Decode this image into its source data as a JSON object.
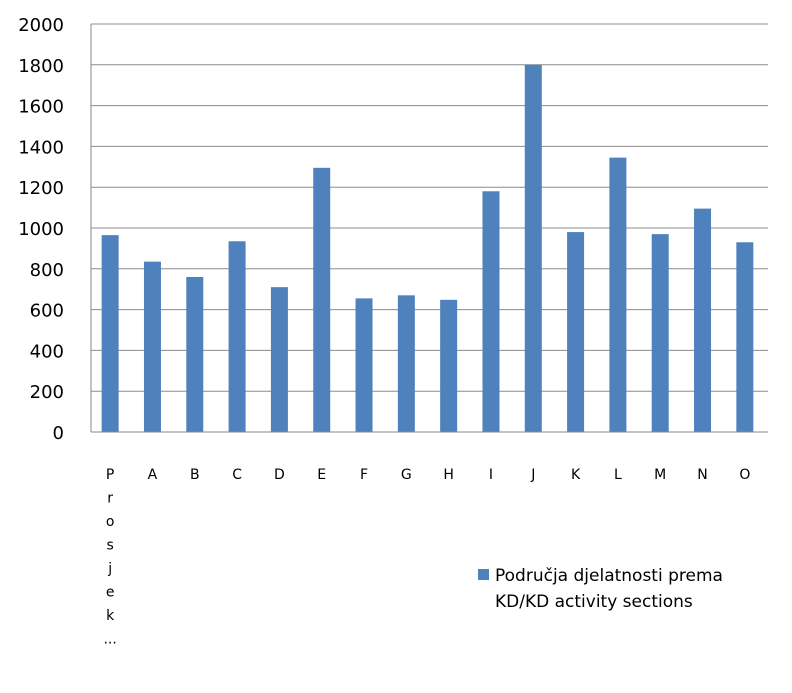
{
  "chart_data": {
    "type": "bar",
    "categories": [
      "Prosjek...",
      "A",
      "B",
      "C",
      "D",
      "E",
      "F",
      "G",
      "H",
      "I",
      "J",
      "K",
      "L",
      "M",
      "N",
      "O"
    ],
    "category_lines": [
      [
        "P",
        "r",
        "o",
        "s",
        "j",
        "e",
        "k",
        "..."
      ],
      [
        "A"
      ],
      [
        "B"
      ],
      [
        "C"
      ],
      [
        "D"
      ],
      [
        "E"
      ],
      [
        "F"
      ],
      [
        "G"
      ],
      [
        "H"
      ],
      [
        "I"
      ],
      [
        "J"
      ],
      [
        "K"
      ],
      [
        "L"
      ],
      [
        "M"
      ],
      [
        "N"
      ],
      [
        "O"
      ]
    ],
    "series": [
      {
        "name": "Područja djelatnosti prema KD/KD activity sections",
        "legend_lines": [
          "Područja djelatnosti prema",
          "KD/KD activity sections"
        ],
        "color": "#4F81BD",
        "values": [
          965,
          835,
          760,
          935,
          710,
          1295,
          655,
          670,
          648,
          1180,
          1800,
          980,
          1345,
          970,
          1095,
          930
        ]
      }
    ],
    "ylim": [
      0,
      2000
    ],
    "yticks": [
      0,
      200,
      400,
      600,
      800,
      1000,
      1200,
      1400,
      1600,
      1800,
      2000
    ],
    "grid": true,
    "legend": "right",
    "title": "",
    "xlabel": "",
    "ylabel": ""
  }
}
